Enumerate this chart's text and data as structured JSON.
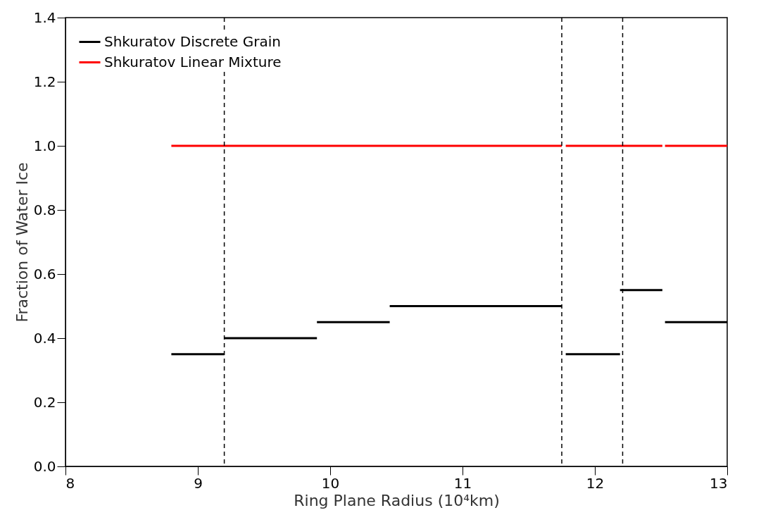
{
  "chart_data": {
    "type": "line",
    "xlabel": "Ring Plane Radius (10⁴km)",
    "ylabel": "Fraction of Water Ice",
    "xlim": [
      8,
      13
    ],
    "xticks": [
      8,
      9,
      10,
      11,
      12,
      13
    ],
    "ylim": [
      0,
      1.4
    ],
    "yticks": [
      {
        "value": 0,
        "label": "0.0"
      },
      0.2,
      0.4,
      0.6,
      0.8,
      {
        "value": 1,
        "label": "1.0"
      },
      1.2,
      1.4
    ],
    "grid": false,
    "legend": "top left",
    "line_style": "solid",
    "marker": "none",
    "series": [
      {
        "name": "Shkuratov Discrete Grain",
        "color": "#000000",
        "x": [
          8.8,
          9.2
        ],
        "values": [
          0.35,
          0.35
        ]
      },
      {
        "name": "Shkuratov Linear Mixture",
        "color": "#ff0000",
        "x": [
          8.8,
          11.75
        ],
        "values": [
          1.0,
          1.0
        ]
      },
      {
        "color": "#000000",
        "x": [
          9.2,
          9.9
        ],
        "values": [
          0.4,
          0.4
        ]
      },
      {
        "color": "#000000",
        "x": [
          9.9,
          10.45
        ],
        "values": [
          0.45,
          0.45
        ]
      },
      {
        "color": "#000000",
        "x": [
          10.45,
          11.75
        ],
        "values": [
          0.5,
          0.5
        ]
      },
      {
        "color": "#000000",
        "x": [
          11.78,
          12.19
        ],
        "values": [
          0.35,
          0.35
        ]
      },
      {
        "color": "#000000",
        "x": [
          12.19,
          12.51
        ],
        "values": [
          0.55,
          0.55
        ]
      },
      {
        "color": "#000000",
        "x": [
          12.53,
          13.0
        ],
        "values": [
          0.45,
          0.45
        ]
      },
      {
        "color": "#ff0000",
        "x": [
          11.78,
          12.51
        ],
        "values": [
          1.0,
          1.0
        ]
      },
      {
        "color": "#ff0000",
        "x": [
          12.53,
          13.0
        ],
        "values": [
          1.0,
          1.0
        ]
      }
    ],
    "ref_lines": [
      {
        "axis": "x",
        "value": 9.2,
        "color": "#000000",
        "line_style": "dashed"
      },
      {
        "axis": "x",
        "value": 11.75,
        "color": "#000000",
        "line_style": "dashed"
      },
      {
        "axis": "x",
        "value": 12.21,
        "color": "#000000",
        "line_style": "dashed"
      }
    ]
  }
}
